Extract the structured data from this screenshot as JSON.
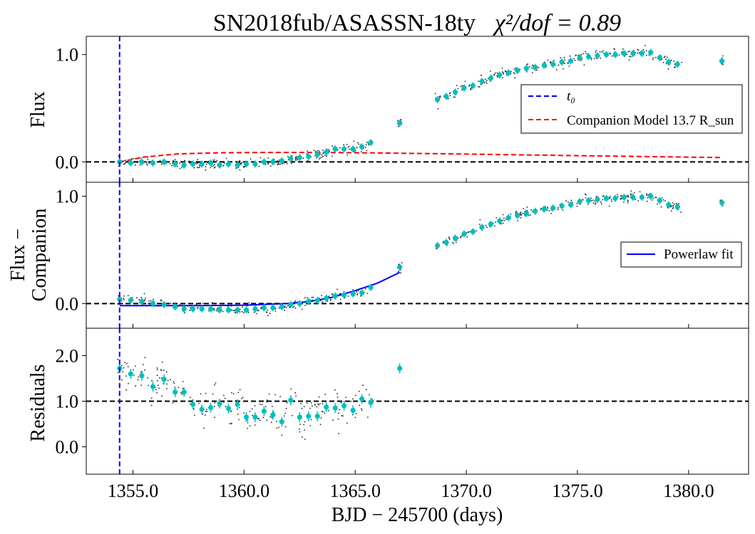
{
  "chart_data": {
    "type": "scatter",
    "title_prefix": "SN2018fub/ASASSN-18ty",
    "title_stat": "χ²/dof = 0.89",
    "xlabel": "BJD − 245700 (days)",
    "xlim": [
      1352.9,
      1382.7
    ],
    "x_ticks": [
      1355.0,
      1360.0,
      1365.0,
      1370.0,
      1375.0,
      1380.0
    ],
    "x_tick_labels": [
      "1355.0",
      "1360.0",
      "1365.0",
      "1370.0",
      "1375.0",
      "1380.0"
    ],
    "t0": 1354.4,
    "colors": {
      "binned": "#00bfbf",
      "raw": "#222222",
      "t0_line": "#0000ff",
      "companion": "#ff0000",
      "powerlaw": "#0000ff",
      "zero_line": "#000000"
    },
    "panels": [
      {
        "id": "flux",
        "ylabel": [
          "Flux"
        ],
        "ylim": [
          -0.19,
          1.17
        ],
        "y_ticks": [
          0.0,
          1.0
        ],
        "y_tick_labels": [
          "0.0",
          "1.0"
        ],
        "hline": 0.0,
        "legend": [
          {
            "style": "dashed",
            "color": "#0000ff",
            "label": "t₀"
          },
          {
            "style": "dashed",
            "color": "#ff0000",
            "label": "Companion Model  13.7  R_sun"
          }
        ],
        "companion_model": {
          "x": [
            1354.4,
            1355.5,
            1357,
            1359,
            1361,
            1363,
            1366,
            1370,
            1375,
            1381.5
          ],
          "y": [
            0.0,
            0.045,
            0.075,
            0.085,
            0.088,
            0.088,
            0.083,
            0.073,
            0.058,
            0.04
          ]
        },
        "binned": {
          "x": [
            1354.4,
            1354.9,
            1355.4,
            1355.9,
            1356.4,
            1356.9,
            1357.3,
            1357.7,
            1358.1,
            1358.5,
            1358.9,
            1359.3,
            1359.7,
            1360.1,
            1360.5,
            1360.9,
            1361.3,
            1361.7,
            1362.1,
            1362.5,
            1362.9,
            1363.3,
            1363.7,
            1364.1,
            1364.5,
            1364.9,
            1365.3,
            1365.7,
            1367.0,
            1368.7,
            1369.1,
            1369.5,
            1369.9,
            1370.3,
            1370.7,
            1371.1,
            1371.5,
            1371.9,
            1372.3,
            1372.7,
            1373.1,
            1373.5,
            1373.9,
            1374.3,
            1374.7,
            1375.1,
            1375.5,
            1375.9,
            1376.3,
            1376.7,
            1377.1,
            1377.5,
            1377.9,
            1378.3,
            1378.7,
            1379.1,
            1379.5,
            1381.5
          ],
          "y": [
            0.0,
            -0.01,
            0.0,
            -0.01,
            0.0,
            -0.02,
            -0.03,
            -0.02,
            -0.02,
            -0.01,
            -0.03,
            -0.02,
            -0.03,
            -0.02,
            -0.02,
            0.0,
            0.0,
            0.01,
            0.03,
            0.04,
            0.05,
            0.07,
            0.09,
            0.12,
            0.12,
            0.12,
            0.14,
            0.18,
            0.36,
            0.58,
            0.61,
            0.65,
            0.69,
            0.71,
            0.75,
            0.78,
            0.81,
            0.83,
            0.85,
            0.87,
            0.88,
            0.9,
            0.91,
            0.93,
            0.94,
            0.97,
            0.98,
            0.99,
            1.0,
            1.0,
            1.01,
            1.01,
            1.01,
            1.02,
            0.97,
            0.93,
            0.91,
            0.94
          ]
        },
        "raw": {
          "sigma": 0.025,
          "n_early": 220,
          "n_late": 230
        }
      },
      {
        "id": "flux_minus_companion",
        "ylabel": [
          "Flux −",
          "Companion"
        ],
        "ylim": [
          -0.23,
          1.13
        ],
        "y_ticks": [
          0.0,
          1.0
        ],
        "y_tick_labels": [
          "0.0",
          "1.0"
        ],
        "hline": 0.0,
        "legend": [
          {
            "style": "solid",
            "color": "#0000ff",
            "label": "Powerlaw fit"
          }
        ],
        "powerlaw_fit": {
          "x": [
            1354.4,
            1356,
            1358,
            1360,
            1362,
            1363,
            1364,
            1365,
            1366,
            1367.0
          ],
          "y": [
            -0.02,
            -0.02,
            -0.02,
            -0.015,
            0.0,
            0.02,
            0.06,
            0.12,
            0.19,
            0.29
          ]
        },
        "binned": {
          "x": [
            1354.4,
            1354.9,
            1355.4,
            1355.9,
            1356.4,
            1356.9,
            1357.3,
            1357.7,
            1358.1,
            1358.5,
            1358.9,
            1359.3,
            1359.7,
            1360.1,
            1360.5,
            1360.9,
            1361.3,
            1361.7,
            1362.1,
            1362.5,
            1362.9,
            1363.3,
            1363.7,
            1364.1,
            1364.5,
            1364.9,
            1365.3,
            1365.7,
            1367.0,
            1368.7,
            1369.1,
            1369.5,
            1369.9,
            1370.3,
            1370.7,
            1371.1,
            1371.5,
            1371.9,
            1372.3,
            1372.7,
            1373.1,
            1373.5,
            1373.9,
            1374.3,
            1374.7,
            1375.1,
            1375.5,
            1375.9,
            1376.3,
            1376.7,
            1377.1,
            1377.5,
            1377.9,
            1378.3,
            1378.7,
            1379.1,
            1379.5,
            1381.5
          ],
          "y": [
            0.04,
            0.03,
            0.02,
            0.0,
            -0.01,
            -0.03,
            -0.05,
            -0.05,
            -0.05,
            -0.05,
            -0.06,
            -0.06,
            -0.06,
            -0.06,
            -0.05,
            -0.04,
            -0.04,
            -0.03,
            -0.01,
            0.0,
            0.02,
            0.03,
            0.05,
            0.07,
            0.08,
            0.09,
            0.1,
            0.15,
            0.34,
            0.54,
            0.57,
            0.61,
            0.65,
            0.67,
            0.71,
            0.74,
            0.77,
            0.8,
            0.82,
            0.84,
            0.86,
            0.88,
            0.89,
            0.91,
            0.92,
            0.95,
            0.96,
            0.97,
            0.98,
            0.98,
            0.99,
            0.99,
            0.99,
            1.0,
            0.96,
            0.92,
            0.9,
            0.94
          ]
        },
        "raw": {
          "sigma": 0.025,
          "n_early": 220,
          "n_late": 230
        }
      },
      {
        "id": "residuals",
        "ylabel": [
          "Residuals"
        ],
        "ylim": [
          -0.6,
          2.6
        ],
        "y_ticks": [
          0.0,
          1.0,
          2.0
        ],
        "y_tick_labels": [
          "0.0",
          "1.0",
          "2.0"
        ],
        "hline": 1.0,
        "binned": {
          "x": [
            1354.4,
            1354.9,
            1355.4,
            1355.9,
            1356.4,
            1356.9,
            1357.3,
            1357.7,
            1358.1,
            1358.5,
            1358.9,
            1359.3,
            1359.7,
            1360.1,
            1360.5,
            1360.9,
            1361.3,
            1361.7,
            1362.1,
            1362.5,
            1362.9,
            1363.3,
            1363.7,
            1364.1,
            1364.5,
            1364.9,
            1365.3,
            1365.7,
            1367.0
          ],
          "y": [
            1.72,
            1.6,
            1.56,
            1.32,
            1.48,
            1.2,
            1.2,
            0.93,
            0.82,
            0.86,
            0.95,
            0.84,
            0.93,
            0.65,
            0.65,
            0.78,
            0.7,
            0.55,
            1.02,
            0.65,
            0.67,
            0.67,
            0.87,
            0.85,
            0.9,
            0.8,
            1.05,
            0.97,
            1.72
          ]
        },
        "raw": {
          "sigma": 0.22,
          "n_early": 220,
          "n_late": 0
        }
      }
    ]
  }
}
